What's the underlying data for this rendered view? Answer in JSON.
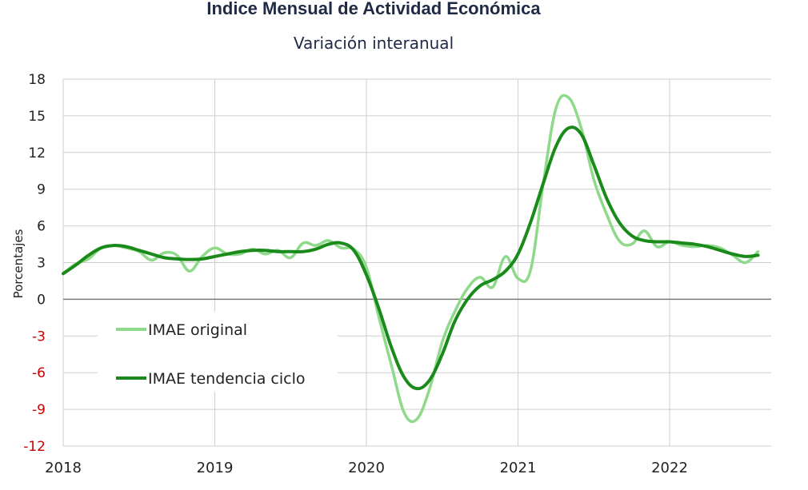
{
  "chart_data": {
    "type": "line",
    "title": "Indice Mensual de  Actividad Económica",
    "subtitle": "Variación interanual",
    "ylabel": "Porcentajes",
    "ylim": [
      -12,
      18
    ],
    "yticks": [
      18,
      15,
      12,
      9,
      6,
      3,
      0,
      -3,
      -6,
      -9,
      -12
    ],
    "negative_tick_color": "#cc0000",
    "xlim": [
      2018,
      2022.67
    ],
    "xticks": [
      "2018",
      "2019",
      "2020",
      "2021",
      "2022"
    ],
    "grid": true,
    "legend_position": "lower-left",
    "series": [
      {
        "name": "IMAE original",
        "color": "#8ed98a",
        "x": [
          2018.0,
          2018.083,
          2018.167,
          2018.25,
          2018.333,
          2018.417,
          2018.5,
          2018.583,
          2018.667,
          2018.75,
          2018.833,
          2018.917,
          2019.0,
          2019.083,
          2019.167,
          2019.25,
          2019.333,
          2019.417,
          2019.5,
          2019.583,
          2019.667,
          2019.75,
          2019.833,
          2019.917,
          2020.0,
          2020.083,
          2020.167,
          2020.25,
          2020.333,
          2020.417,
          2020.5,
          2020.583,
          2020.667,
          2020.75,
          2020.833,
          2020.917,
          2021.0,
          2021.083,
          2021.167,
          2021.25,
          2021.333,
          2021.417,
          2021.5,
          2021.583,
          2021.667,
          2021.75,
          2021.833,
          2021.917,
          2022.0,
          2022.083,
          2022.167,
          2022.25,
          2022.333,
          2022.417,
          2022.5,
          2022.583
        ],
        "y": [
          2.1,
          2.9,
          3.3,
          4.2,
          4.4,
          4.2,
          3.9,
          3.2,
          3.8,
          3.6,
          2.3,
          3.5,
          4.2,
          3.7,
          3.7,
          4.1,
          3.7,
          4.0,
          3.4,
          4.6,
          4.4,
          4.8,
          4.2,
          4.1,
          2.6,
          -1.5,
          -5.5,
          -9.3,
          -9.8,
          -7.3,
          -3.5,
          -1.0,
          0.9,
          1.8,
          1.0,
          3.5,
          1.7,
          2.4,
          9.5,
          15.6,
          16.5,
          14.0,
          9.8,
          7.0,
          4.8,
          4.5,
          5.6,
          4.3,
          4.7,
          4.4,
          4.3,
          4.4,
          4.2,
          3.6,
          3.0,
          3.9
        ]
      },
      {
        "name": "IMAE tendencia ciclo",
        "color": "#1a8a1a",
        "x": [
          2018.0,
          2018.083,
          2018.167,
          2018.25,
          2018.333,
          2018.417,
          2018.5,
          2018.583,
          2018.667,
          2018.75,
          2018.833,
          2018.917,
          2019.0,
          2019.083,
          2019.167,
          2019.25,
          2019.333,
          2019.417,
          2019.5,
          2019.583,
          2019.667,
          2019.75,
          2019.833,
          2019.917,
          2020.0,
          2020.083,
          2020.167,
          2020.25,
          2020.333,
          2020.417,
          2020.5,
          2020.583,
          2020.667,
          2020.75,
          2020.833,
          2020.917,
          2021.0,
          2021.083,
          2021.167,
          2021.25,
          2021.333,
          2021.417,
          2021.5,
          2021.583,
          2021.667,
          2021.75,
          2021.833,
          2021.917,
          2022.0,
          2022.083,
          2022.167,
          2022.25,
          2022.333,
          2022.417,
          2022.5,
          2022.583
        ],
        "y": [
          2.1,
          2.8,
          3.6,
          4.2,
          4.4,
          4.3,
          4.0,
          3.7,
          3.4,
          3.3,
          3.25,
          3.3,
          3.5,
          3.7,
          3.9,
          4.0,
          4.0,
          3.9,
          3.9,
          3.9,
          4.1,
          4.5,
          4.6,
          4.0,
          2.0,
          -0.8,
          -4.0,
          -6.4,
          -7.3,
          -6.6,
          -4.5,
          -1.8,
          0.0,
          1.1,
          1.6,
          2.3,
          3.7,
          6.3,
          9.5,
          12.5,
          14.0,
          13.5,
          11.0,
          8.3,
          6.3,
          5.2,
          4.8,
          4.7,
          4.7,
          4.6,
          4.5,
          4.3,
          4.0,
          3.7,
          3.5,
          3.6
        ]
      }
    ]
  }
}
